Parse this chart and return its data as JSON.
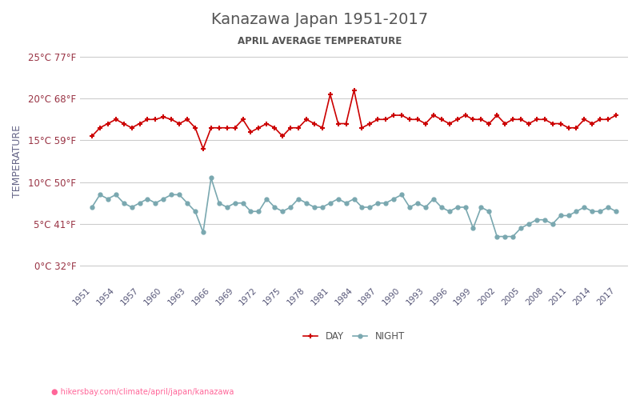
{
  "title": "Kanazawa Japan 1951-2017",
  "subtitle": "APRIL AVERAGE TEMPERATURE",
  "ylabel": "TEMPERATURE",
  "url_text": "hikersbay.com/climate/april/japan/kanazawa",
  "years": [
    1951,
    1952,
    1953,
    1954,
    1955,
    1956,
    1957,
    1958,
    1959,
    1960,
    1961,
    1962,
    1963,
    1964,
    1965,
    1966,
    1967,
    1968,
    1969,
    1970,
    1971,
    1972,
    1973,
    1974,
    1975,
    1976,
    1977,
    1978,
    1979,
    1980,
    1981,
    1982,
    1983,
    1984,
    1985,
    1986,
    1987,
    1988,
    1989,
    1990,
    1991,
    1992,
    1993,
    1994,
    1995,
    1996,
    1997,
    1998,
    1999,
    2000,
    2001,
    2002,
    2003,
    2004,
    2005,
    2006,
    2007,
    2008,
    2009,
    2010,
    2011,
    2012,
    2013,
    2014,
    2015,
    2016,
    2017
  ],
  "day_temps": [
    15.5,
    16.5,
    17.0,
    17.5,
    17.0,
    16.5,
    17.0,
    17.5,
    17.5,
    17.8,
    17.5,
    17.0,
    17.5,
    16.5,
    14.0,
    16.5,
    16.5,
    16.5,
    16.5,
    17.5,
    16.0,
    16.5,
    17.0,
    16.5,
    15.5,
    16.5,
    16.5,
    17.5,
    17.0,
    16.5,
    20.5,
    17.0,
    17.0,
    21.0,
    16.5,
    17.0,
    17.5,
    17.5,
    18.0,
    18.0,
    17.5,
    17.5,
    17.0,
    18.0,
    17.5,
    17.0,
    17.5,
    18.0,
    17.5,
    17.5,
    17.0,
    18.0,
    17.0,
    17.5,
    17.5,
    17.0,
    17.5,
    17.5,
    17.0,
    17.0,
    16.5,
    16.5,
    17.5,
    17.0,
    17.5,
    17.5,
    18.0
  ],
  "night_temps": [
    7.0,
    8.5,
    8.0,
    8.5,
    7.5,
    7.0,
    7.5,
    8.0,
    7.5,
    8.0,
    8.5,
    8.5,
    7.5,
    6.5,
    4.0,
    10.5,
    7.5,
    7.0,
    7.5,
    7.5,
    6.5,
    6.5,
    8.0,
    7.0,
    6.5,
    7.0,
    8.0,
    7.5,
    7.0,
    7.0,
    7.5,
    8.0,
    7.5,
    8.0,
    7.0,
    7.0,
    7.5,
    7.5,
    8.0,
    8.5,
    7.0,
    7.5,
    7.0,
    8.0,
    7.0,
    6.5,
    7.0,
    7.0,
    4.5,
    7.0,
    6.5,
    3.5,
    3.5,
    3.5,
    4.5,
    5.0,
    5.5,
    5.5,
    5.0,
    6.0,
    6.0,
    6.5,
    7.0,
    6.5,
    6.5,
    7.0,
    6.5
  ],
  "day_color": "#cc0000",
  "night_color": "#7aa8b0",
  "grid_color": "#cccccc",
  "title_color": "#555555",
  "subtitle_color": "#555555",
  "label_color": "#993344",
  "background_color": "#ffffff",
  "yticks_c": [
    0,
    5,
    10,
    15,
    20,
    25
  ],
  "yticks_f": [
    32,
    41,
    50,
    59,
    68,
    77
  ],
  "ylim": [
    -2,
    27
  ],
  "legend_night": "NIGHT",
  "legend_day": "DAY"
}
